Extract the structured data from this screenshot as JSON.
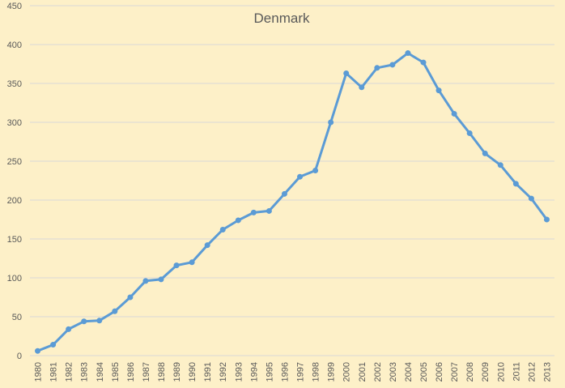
{
  "chart_data": {
    "type": "line",
    "title": "Denmark",
    "xlabel": "",
    "ylabel": "",
    "ylim": [
      0,
      450
    ],
    "yticks": [
      0,
      50,
      100,
      150,
      200,
      250,
      300,
      350,
      400,
      450
    ],
    "grid": true,
    "legend": "none",
    "colors": {
      "line": "#5b9bd5",
      "grid": "#d9d9d9",
      "text": "#595959",
      "background": "#fdf0c8"
    },
    "categories": [
      "1980",
      "1981",
      "1982",
      "1983",
      "1984",
      "1985",
      "1986",
      "1987",
      "1988",
      "1989",
      "1990",
      "1991",
      "1992",
      "1993",
      "1994",
      "1995",
      "1996",
      "1997",
      "1998",
      "1999",
      "2000",
      "2001",
      "2002",
      "2003",
      "2004",
      "2005",
      "2006",
      "2007",
      "2008",
      "2009",
      "2010",
      "2011",
      "2012",
      "2013"
    ],
    "series": [
      {
        "values": [
          6,
          14,
          34,
          44,
          45,
          57,
          75,
          96,
          98,
          116,
          120,
          142,
          162,
          174,
          184,
          186,
          208,
          230,
          238,
          300,
          363,
          345,
          370,
          374,
          389,
          377,
          341,
          311,
          286,
          260,
          245,
          221,
          202,
          175
        ]
      }
    ]
  }
}
